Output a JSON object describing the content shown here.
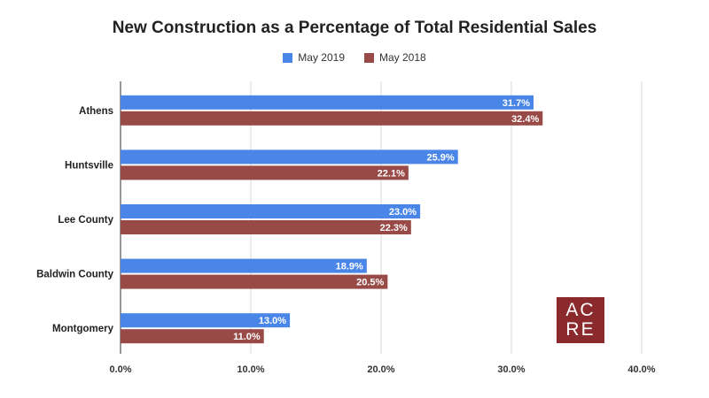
{
  "chart_data": {
    "type": "bar",
    "orientation": "horizontal",
    "title": "New Construction as a Percentage of Total Residential Sales",
    "categories": [
      "Athens",
      "Huntsville",
      "Lee County",
      "Baldwin County",
      "Montgomery"
    ],
    "series": [
      {
        "name": "May 2019",
        "color": "#4a86e8",
        "values": [
          31.7,
          25.9,
          23.0,
          18.9,
          13.0
        ],
        "labels": [
          "31.7%",
          "25.9%",
          "23.0%",
          "18.9%",
          "13.0%"
        ]
      },
      {
        "name": "May 2018",
        "color": "#984a47",
        "values": [
          32.4,
          22.1,
          22.3,
          20.5,
          11.0
        ],
        "labels": [
          "32.4%",
          "22.1%",
          "22.3%",
          "20.5%",
          "11.0%"
        ]
      }
    ],
    "xlim": [
      0,
      40
    ],
    "xticks": [
      "0.0%",
      "10.0%",
      "20.0%",
      "30.0%",
      "40.0%"
    ],
    "grid": true,
    "legend_position": "top"
  },
  "logo": {
    "line1": "AC",
    "line2": "RE",
    "color": "#8b2a2d"
  }
}
